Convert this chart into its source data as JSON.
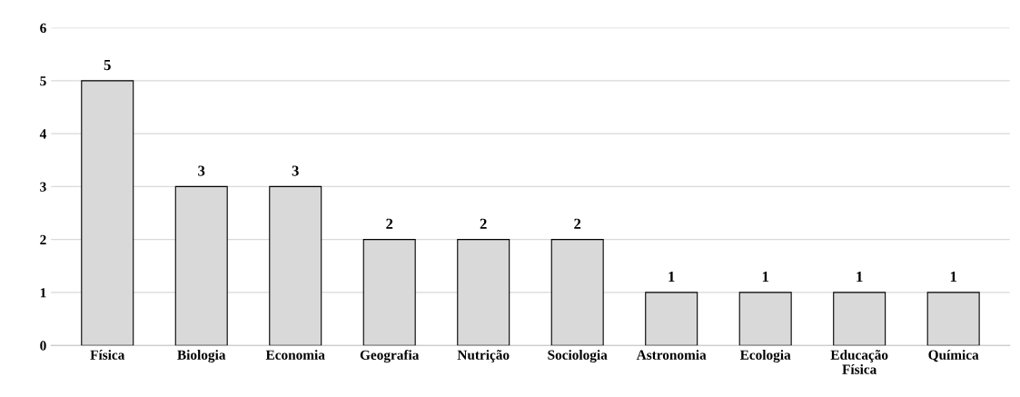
{
  "chart_data": {
    "type": "bar",
    "categories": [
      "Física",
      "Biologia",
      "Economia",
      "Geografia",
      "Nutrição",
      "Sociologia",
      "Astronomia",
      "Ecologia",
      "Educação\nFísica",
      "Química"
    ],
    "values": [
      5,
      3,
      3,
      2,
      2,
      2,
      1,
      1,
      1,
      1
    ],
    "color": "#d9d9d9",
    "ylim": [
      0,
      6
    ],
    "yticks": [
      0,
      1,
      2,
      3,
      4,
      5,
      6
    ],
    "grid": "y",
    "data_labels": true
  }
}
